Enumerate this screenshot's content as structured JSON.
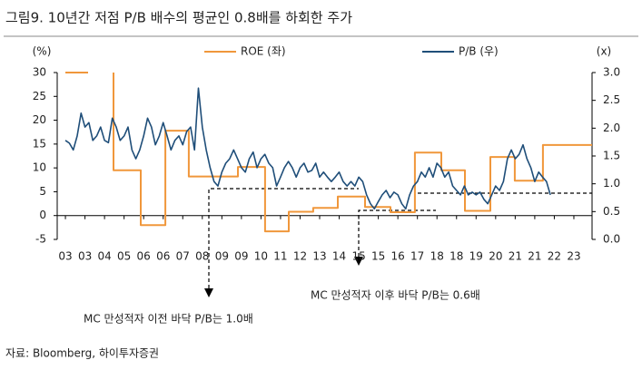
{
  "chart_data": {
    "type": "line",
    "title": "그림9. 10년간 저점 P/B 배수의 평균인 0.8배를 하회한 주가",
    "y_label": "(%)",
    "y2_label": "(x)",
    "legend": "top",
    "xlim": [
      -0.42,
      26.93
    ],
    "xticks": [
      {
        "value": 0,
        "label": "03"
      },
      {
        "value": 1,
        "label": "03"
      },
      {
        "value": 2,
        "label": "04"
      },
      {
        "value": 3,
        "label": "05"
      },
      {
        "value": 4,
        "label": "06"
      },
      {
        "value": 5,
        "label": "06"
      },
      {
        "value": 6,
        "label": "07"
      },
      {
        "value": 7,
        "label": "08"
      },
      {
        "value": 8,
        "label": "09"
      },
      {
        "value": 9,
        "label": "09"
      },
      {
        "value": 10,
        "label": "10"
      },
      {
        "value": 11,
        "label": "11"
      },
      {
        "value": 12,
        "label": "12"
      },
      {
        "value": 13,
        "label": "13"
      },
      {
        "value": 14,
        "label": "14"
      },
      {
        "value": 15,
        "label": "15"
      },
      {
        "value": 16,
        "label": "15"
      },
      {
        "value": 17,
        "label": "16"
      },
      {
        "value": 18,
        "label": "17"
      },
      {
        "value": 19,
        "label": "18"
      },
      {
        "value": 20,
        "label": "18"
      },
      {
        "value": 21,
        "label": "19"
      },
      {
        "value": 22,
        "label": "20"
      },
      {
        "value": 23,
        "label": "21"
      },
      {
        "value": 24,
        "label": "21"
      },
      {
        "value": 25,
        "label": "22"
      },
      {
        "value": 26,
        "label": "23"
      }
    ],
    "ylim": [
      -5,
      30
    ],
    "yticks": [
      -5,
      0,
      5,
      10,
      15,
      20,
      25,
      30
    ],
    "y2lim": [
      0,
      3
    ],
    "y2ticks": [
      {
        "value": 0,
        "label": "0.0"
      },
      {
        "value": 0.5,
        "label": "0.5"
      },
      {
        "value": 1,
        "label": "1.0"
      },
      {
        "value": 1.5,
        "label": "1.5"
      },
      {
        "value": 2,
        "label": "2.0"
      },
      {
        "value": 2.5,
        "label": "2.5"
      },
      {
        "value": 3,
        "label": "3.0"
      }
    ],
    "series": [
      {
        "name": "ROE (좌)",
        "color": "#F0973B",
        "x": [
          0,
          1.16,
          1.16,
          2.46,
          2.46,
          3.85,
          3.85,
          5.11,
          5.11,
          6.31,
          6.31,
          8.82,
          8.82,
          10.21,
          10.21,
          11.42,
          11.42,
          12.67,
          12.67,
          13.93,
          13.93,
          15.32,
          15.32,
          16.62,
          16.62,
          17.87,
          17.87,
          19.22,
          19.22,
          20.43,
          20.43,
          21.73,
          21.73,
          22.98,
          22.98,
          24.42,
          24.42,
          26.93
        ],
        "values": [
          30,
          30,
          null,
          30,
          9.5,
          9.5,
          -2,
          -2,
          17.8,
          17.8,
          8.2,
          8.2,
          10.2,
          10.2,
          -3.3,
          -3.3,
          0.8,
          0.8,
          1.6,
          1.6,
          4,
          4,
          1.8,
          1.8,
          0.7,
          0.7,
          13.2,
          13.2,
          9.5,
          9.5,
          1,
          1,
          12.3,
          12.3,
          7.3,
          7.3,
          14.8,
          14.8
        ]
      },
      {
        "name": "P/B (우)",
        "color": "#1F4E79",
        "axis": "y2",
        "x": [
          0,
          0.2,
          0.4,
          0.6,
          0.8,
          1,
          1.2,
          1.4,
          1.6,
          1.8,
          2,
          2.2,
          2.4,
          2.6,
          2.8,
          3,
          3.2,
          3.4,
          3.6,
          3.8,
          4,
          4.2,
          4.4,
          4.6,
          4.8,
          5,
          5.2,
          5.4,
          5.6,
          5.8,
          6,
          6.2,
          6.4,
          6.6,
          6.8,
          7,
          7.2,
          7.4,
          7.6,
          7.8,
          8,
          8.2,
          8.4,
          8.6,
          8.8,
          9,
          9.2,
          9.4,
          9.6,
          9.8,
          10,
          10.2,
          10.4,
          10.6,
          10.8,
          11,
          11.2,
          11.4,
          11.6,
          11.8,
          12,
          12.2,
          12.4,
          12.6,
          12.8,
          13,
          13.2,
          13.4,
          13.6,
          13.8,
          14,
          14.2,
          14.4,
          14.6,
          14.8,
          15,
          15.2,
          15.4,
          15.6,
          15.8,
          16,
          16.2,
          16.4,
          16.6,
          16.8,
          17,
          17.2,
          17.4,
          17.6,
          17.8,
          18,
          18.2,
          18.4,
          18.6,
          18.8,
          19,
          19.2,
          19.4,
          19.6,
          19.8,
          20,
          20.2,
          20.4,
          20.6,
          20.8,
          21,
          21.2,
          21.4,
          21.6,
          21.8,
          22,
          22.2,
          22.4,
          22.6,
          22.8,
          23,
          23.2,
          23.4,
          23.6,
          23.8,
          24,
          24.2,
          24.4,
          24.6,
          24.8
        ],
        "values": [
          1.78,
          1.73,
          1.61,
          1.86,
          2.27,
          2.02,
          2.1,
          1.78,
          1.86,
          2.02,
          1.78,
          1.74,
          2.18,
          2.02,
          1.78,
          1.86,
          2.02,
          1.61,
          1.45,
          1.61,
          1.86,
          2.18,
          2.02,
          1.7,
          1.86,
          2.1,
          1.86,
          1.61,
          1.78,
          1.86,
          1.7,
          1.94,
          2.02,
          1.61,
          2.72,
          2.02,
          1.61,
          1.29,
          1.04,
          0.96,
          1.21,
          1.37,
          1.45,
          1.61,
          1.45,
          1.29,
          1.21,
          1.45,
          1.57,
          1.29,
          1.45,
          1.53,
          1.37,
          1.29,
          0.96,
          1.12,
          1.29,
          1.4,
          1.29,
          1.12,
          1.29,
          1.37,
          1.21,
          1.24,
          1.37,
          1.12,
          1.21,
          1.12,
          1.04,
          1.12,
          1.21,
          1.04,
          0.96,
          1.04,
          0.96,
          1.12,
          1.04,
          0.8,
          0.64,
          0.55,
          0.68,
          0.8,
          0.88,
          0.75,
          0.85,
          0.8,
          0.64,
          0.55,
          0.8,
          0.96,
          1.04,
          1.21,
          1.12,
          1.29,
          1.12,
          1.37,
          1.29,
          1.12,
          1.21,
          0.96,
          0.88,
          0.8,
          0.96,
          0.8,
          0.85,
          0.8,
          0.85,
          0.72,
          0.64,
          0.8,
          0.96,
          0.88,
          1.04,
          1.45,
          1.61,
          1.45,
          1.53,
          1.7,
          1.45,
          1.29,
          1.04,
          1.21,
          1.12,
          1.04,
          0.8
        ]
      }
    ],
    "annotations": [
      "MC 만성적자 이전 바닥 P/B는 1.0배",
      "MC 만성적자 이후 바닥 P/B는 0.6배"
    ]
  },
  "source": "자료: Bloomberg, 하이투자증권"
}
